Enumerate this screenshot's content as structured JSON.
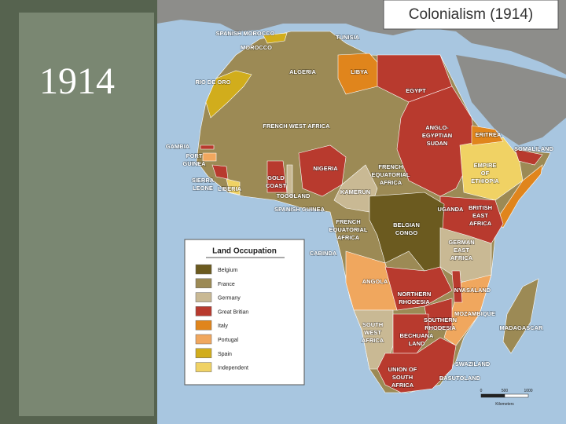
{
  "slide_title": "1914",
  "map": {
    "title": "Colonialism (1914)",
    "legend": {
      "title": "Land Occupation",
      "items": [
        {
          "label": "Belgium",
          "color": "#6b5a1f"
        },
        {
          "label": "France",
          "color": "#9c8a55"
        },
        {
          "label": "Germany",
          "color": "#c9b994"
        },
        {
          "label": "Great Britian",
          "color": "#b83a2e"
        },
        {
          "label": "Italy",
          "color": "#e0851c"
        },
        {
          "label": "Portugal",
          "color": "#f0a75e"
        },
        {
          "label": "Spain",
          "color": "#d1ad1c"
        },
        {
          "label": "Independent",
          "color": "#f0d264"
        }
      ]
    },
    "scale": {
      "ticks": [
        "0",
        "500",
        "1000"
      ],
      "unit": "Kilometers"
    },
    "labels": [
      {
        "lines": [
          "SPANISH MOROCCO"
        ]
      },
      {
        "lines": [
          "TUNISIA"
        ]
      },
      {
        "lines": [
          "MOROCCO"
        ]
      },
      {
        "lines": [
          "ALGERIA"
        ]
      },
      {
        "lines": [
          "LIBYA"
        ]
      },
      {
        "lines": [
          "RIO DE ORO"
        ]
      },
      {
        "lines": [
          "EGYPT"
        ]
      },
      {
        "lines": [
          "FRENCH WEST AFRICA"
        ]
      },
      {
        "lines": [
          "ANGLO-",
          "EGYPTIAN",
          "SUDAN"
        ]
      },
      {
        "lines": [
          "ERITREA"
        ]
      },
      {
        "lines": [
          "GAMBIA"
        ]
      },
      {
        "lines": [
          "SOMALILAND"
        ]
      },
      {
        "lines": [
          "PORT",
          "GUINEA"
        ]
      },
      {
        "lines": [
          "EMPIRE",
          "OF",
          "ETHIOPIA"
        ]
      },
      {
        "lines": [
          "NIGERIA"
        ]
      },
      {
        "lines": [
          "FRENCH",
          "EQUATORIAL",
          "AFRICA"
        ]
      },
      {
        "lines": [
          "SIERRA",
          "LEONE"
        ]
      },
      {
        "lines": [
          "LIBERIA"
        ]
      },
      {
        "lines": [
          "GOLD",
          "COAST"
        ]
      },
      {
        "lines": [
          "KAMERUN"
        ]
      },
      {
        "lines": [
          "TOGOLAND"
        ]
      },
      {
        "lines": [
          "SPANISH GUINEA"
        ]
      },
      {
        "lines": [
          "UGANDA"
        ]
      },
      {
        "lines": [
          "BRITISH",
          "EAST",
          "AFRICA"
        ]
      },
      {
        "lines": [
          "FRENCH",
          "EQUATORIAL",
          "AFRICA"
        ]
      },
      {
        "lines": [
          "BELGIAN",
          "CONGO"
        ]
      },
      {
        "lines": [
          "GERMAN",
          "EAST",
          "AFRICA"
        ]
      },
      {
        "lines": [
          "CABINDA"
        ]
      },
      {
        "lines": [
          "ANGOLA"
        ]
      },
      {
        "lines": [
          "NYASALAND"
        ]
      },
      {
        "lines": [
          "NORTHERN",
          "RHODESIA"
        ]
      },
      {
        "lines": [
          "MOZAMBIQUE"
        ]
      },
      {
        "lines": [
          "SOUTHERN",
          "RHODESIA"
        ]
      },
      {
        "lines": [
          "SOUTH",
          "WEST",
          "AFRICA"
        ]
      },
      {
        "lines": [
          "MADAGASCAR"
        ]
      },
      {
        "lines": [
          "BECHUANA",
          "LAND"
        ]
      },
      {
        "lines": [
          "SWAZILAND"
        ]
      },
      {
        "lines": [
          "UNION OF",
          "SOUTH",
          "AFRICA"
        ]
      },
      {
        "lines": [
          "BASUTOLAND"
        ]
      }
    ]
  }
}
